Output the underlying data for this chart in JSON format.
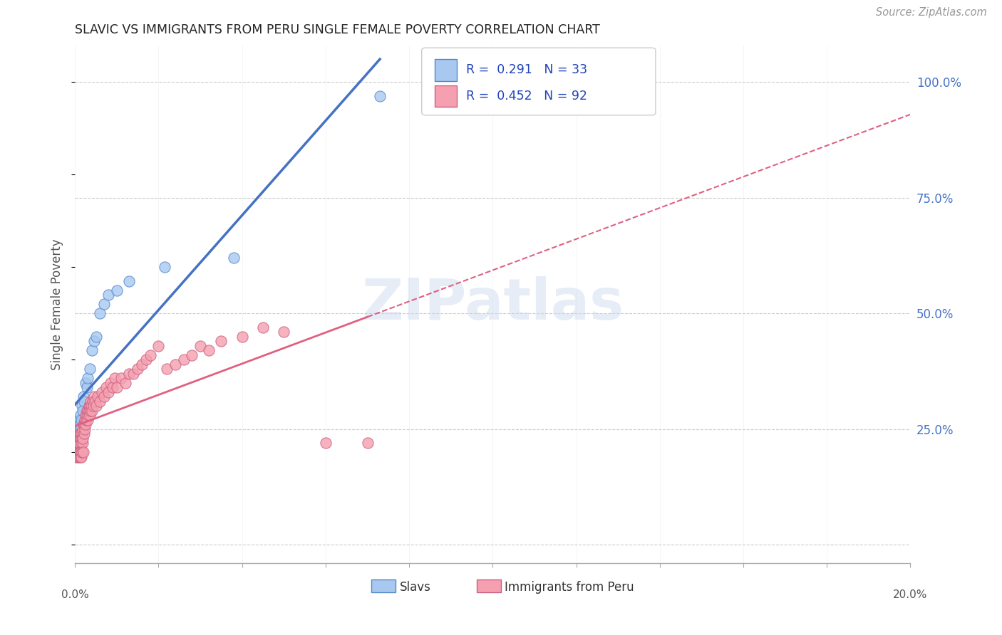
{
  "title": "SLAVIC VS IMMIGRANTS FROM PERU SINGLE FEMALE POVERTY CORRELATION CHART",
  "source": "Source: ZipAtlas.com",
  "ylabel": "Single Female Poverty",
  "R1": 0.291,
  "N1": 33,
  "R2": 0.452,
  "N2": 92,
  "color_slavs_fill": "#A8C8F0",
  "color_slavs_edge": "#5588CC",
  "color_peru_fill": "#F4A0B0",
  "color_peru_edge": "#CC6080",
  "color_line_slavs": "#4472C4",
  "color_line_peru": "#E06080",
  "watermark": "ZIPatlas",
  "xlim": [
    0.0,
    0.2
  ],
  "ylim": [
    -0.04,
    1.08
  ],
  "ytick_vals": [
    0.0,
    0.25,
    0.5,
    0.75,
    1.0
  ],
  "ytick_labels": [
    "",
    "25.0%",
    "50.0%",
    "75.0%",
    "100.0%"
  ],
  "xtick_positions": [
    0.0,
    0.02,
    0.04,
    0.06,
    0.08,
    0.1,
    0.12,
    0.14,
    0.16,
    0.18,
    0.2
  ],
  "slavs_x": [
    0.0002,
    0.0003,
    0.0004,
    0.0005,
    0.0006,
    0.0007,
    0.0008,
    0.0009,
    0.001,
    0.0011,
    0.0012,
    0.0013,
    0.0014,
    0.0015,
    0.0016,
    0.0018,
    0.002,
    0.0022,
    0.0025,
    0.0028,
    0.003,
    0.0035,
    0.004,
    0.0045,
    0.005,
    0.006,
    0.007,
    0.008,
    0.01,
    0.013,
    0.0215,
    0.038,
    0.073
  ],
  "slavs_y": [
    0.23,
    0.22,
    0.24,
    0.21,
    0.25,
    0.22,
    0.26,
    0.23,
    0.27,
    0.24,
    0.26,
    0.25,
    0.28,
    0.27,
    0.3,
    0.29,
    0.32,
    0.31,
    0.35,
    0.34,
    0.36,
    0.38,
    0.42,
    0.44,
    0.45,
    0.5,
    0.52,
    0.54,
    0.55,
    0.57,
    0.6,
    0.62,
    0.97
  ],
  "peru_x": [
    0.0002,
    0.0003,
    0.0003,
    0.0004,
    0.0004,
    0.0005,
    0.0005,
    0.0006,
    0.0006,
    0.0007,
    0.0007,
    0.0008,
    0.0008,
    0.0009,
    0.0009,
    0.001,
    0.001,
    0.0011,
    0.0011,
    0.0012,
    0.0012,
    0.0013,
    0.0013,
    0.0014,
    0.0014,
    0.0015,
    0.0015,
    0.0016,
    0.0016,
    0.0017,
    0.0017,
    0.0018,
    0.0018,
    0.0019,
    0.002,
    0.002,
    0.0021,
    0.0022,
    0.0023,
    0.0024,
    0.0025,
    0.0026,
    0.0027,
    0.0028,
    0.0029,
    0.003,
    0.0031,
    0.0032,
    0.0033,
    0.0034,
    0.0035,
    0.0036,
    0.0037,
    0.0038,
    0.0039,
    0.004,
    0.0042,
    0.0044,
    0.0046,
    0.0048,
    0.005,
    0.0055,
    0.006,
    0.0065,
    0.007,
    0.0075,
    0.008,
    0.0085,
    0.009,
    0.0095,
    0.01,
    0.011,
    0.012,
    0.013,
    0.014,
    0.015,
    0.016,
    0.017,
    0.018,
    0.02,
    0.022,
    0.024,
    0.026,
    0.028,
    0.03,
    0.032,
    0.035,
    0.04,
    0.045,
    0.05,
    0.06,
    0.07
  ],
  "peru_y": [
    0.19,
    0.2,
    0.21,
    0.2,
    0.22,
    0.19,
    0.21,
    0.2,
    0.22,
    0.2,
    0.22,
    0.19,
    0.22,
    0.2,
    0.23,
    0.19,
    0.22,
    0.2,
    0.24,
    0.2,
    0.23,
    0.19,
    0.23,
    0.2,
    0.24,
    0.19,
    0.22,
    0.2,
    0.24,
    0.2,
    0.23,
    0.22,
    0.25,
    0.23,
    0.2,
    0.26,
    0.24,
    0.26,
    0.25,
    0.27,
    0.26,
    0.28,
    0.27,
    0.29,
    0.28,
    0.27,
    0.29,
    0.28,
    0.3,
    0.29,
    0.28,
    0.3,
    0.29,
    0.31,
    0.3,
    0.29,
    0.31,
    0.3,
    0.32,
    0.31,
    0.3,
    0.32,
    0.31,
    0.33,
    0.32,
    0.34,
    0.33,
    0.35,
    0.34,
    0.36,
    0.34,
    0.36,
    0.35,
    0.37,
    0.37,
    0.38,
    0.39,
    0.4,
    0.41,
    0.43,
    0.38,
    0.39,
    0.4,
    0.41,
    0.43,
    0.42,
    0.44,
    0.45,
    0.47,
    0.46,
    0.22,
    0.22
  ]
}
